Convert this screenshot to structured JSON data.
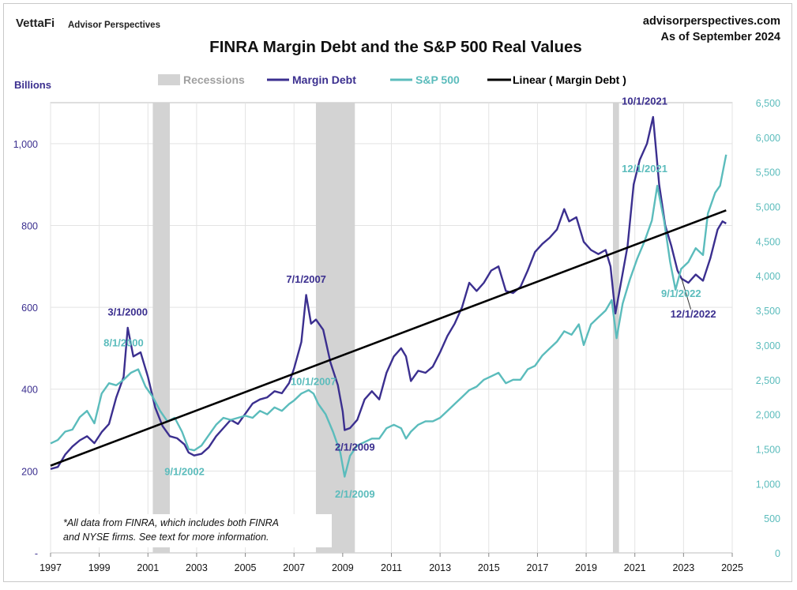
{
  "header": {
    "brand_logo": "VettaFi",
    "brand_name": "Advisor Perspectives",
    "site": "advisorperspectives.com",
    "as_of": "As of September 2024"
  },
  "footnote": {
    "line1": "*All data from FINRA, which includes both FINRA",
    "line2": "and NYSE firms. See text for more information."
  },
  "colors": {
    "margin_debt": "#3b2f8f",
    "sp500": "#5bbcbc",
    "linear": "#000000",
    "recession": "#d3d3d3",
    "grid": "#e3e3e3"
  },
  "chart_data": {
    "type": "line",
    "title": "FINRA Margin Debt and the S&P 500 Real Values",
    "ylabel": "Billions",
    "xlim": [
      1997,
      2025
    ],
    "ylim_left": [
      0,
      1100
    ],
    "ylim_right": [
      0,
      6500
    ],
    "x_ticks": [
      "1997",
      "1999",
      "2001",
      "2003",
      "2005",
      "2007",
      "2009",
      "2011",
      "2013",
      "2015",
      "2017",
      "2019",
      "2021",
      "2023",
      "2025"
    ],
    "left_ticks": [
      {
        "v": 0,
        "label": "-"
      },
      {
        "v": 200,
        "label": "200"
      },
      {
        "v": 400,
        "label": "400"
      },
      {
        "v": 600,
        "label": "600"
      },
      {
        "v": 800,
        "label": "800"
      },
      {
        "v": 1000,
        "label": "1,000"
      }
    ],
    "right_ticks": [
      {
        "v": 0,
        "label": "0"
      },
      {
        "v": 500,
        "label": "500"
      },
      {
        "v": 1000,
        "label": "1,000"
      },
      {
        "v": 1500,
        "label": "1,500"
      },
      {
        "v": 2000,
        "label": "2,000"
      },
      {
        "v": 2500,
        "label": "2,500"
      },
      {
        "v": 3000,
        "label": "3,000"
      },
      {
        "v": 3500,
        "label": "3,500"
      },
      {
        "v": 4000,
        "label": "4,000"
      },
      {
        "v": 4500,
        "label": "4,500"
      },
      {
        "v": 5000,
        "label": "5,000"
      },
      {
        "v": 5500,
        "label": "5,500"
      },
      {
        "v": 6000,
        "label": "6,000"
      },
      {
        "v": 6500,
        "label": "6,500"
      }
    ],
    "legend": {
      "position": "top",
      "items": [
        {
          "label": "Recessions",
          "kind": "rect",
          "color": "#d3d3d3",
          "text_color": "#a0a0a0"
        },
        {
          "label": "Margin Debt",
          "kind": "line",
          "color": "#3b2f8f",
          "text_color": "#3b2f8f"
        },
        {
          "label": "S&P 500",
          "kind": "line",
          "color": "#5bbcbc",
          "text_color": "#5bbcbc"
        },
        {
          "label": "Linear ( Margin Debt )",
          "kind": "line",
          "color": "#000000",
          "text_color": "#000000"
        }
      ]
    },
    "recessions": [
      [
        2001.2,
        2001.9
      ],
      [
        2007.9,
        2009.5
      ],
      [
        2020.1,
        2020.35
      ]
    ],
    "series": [
      {
        "name": "Margin Debt",
        "axis": "left",
        "points": [
          [
            1997.0,
            205
          ],
          [
            1997.3,
            210
          ],
          [
            1997.6,
            240
          ],
          [
            1997.9,
            260
          ],
          [
            1998.2,
            275
          ],
          [
            1998.5,
            285
          ],
          [
            1998.8,
            268
          ],
          [
            1999.1,
            295
          ],
          [
            1999.4,
            315
          ],
          [
            1999.7,
            380
          ],
          [
            2000.0,
            430
          ],
          [
            2000.17,
            550
          ],
          [
            2000.4,
            480
          ],
          [
            2000.7,
            490
          ],
          [
            2001.0,
            430
          ],
          [
            2001.3,
            355
          ],
          [
            2001.6,
            310
          ],
          [
            2001.9,
            285
          ],
          [
            2002.2,
            280
          ],
          [
            2002.5,
            265
          ],
          [
            2002.67,
            245
          ],
          [
            2002.9,
            238
          ],
          [
            2003.2,
            242
          ],
          [
            2003.5,
            258
          ],
          [
            2003.8,
            285
          ],
          [
            2004.1,
            305
          ],
          [
            2004.4,
            325
          ],
          [
            2004.7,
            315
          ],
          [
            2005.0,
            340
          ],
          [
            2005.3,
            365
          ],
          [
            2005.6,
            375
          ],
          [
            2005.9,
            380
          ],
          [
            2006.2,
            395
          ],
          [
            2006.5,
            390
          ],
          [
            2006.8,
            415
          ],
          [
            2007.0,
            450
          ],
          [
            2007.3,
            515
          ],
          [
            2007.5,
            630
          ],
          [
            2007.7,
            560
          ],
          [
            2007.9,
            570
          ],
          [
            2008.2,
            545
          ],
          [
            2008.5,
            465
          ],
          [
            2008.8,
            410
          ],
          [
            2009.0,
            345
          ],
          [
            2009.08,
            300
          ],
          [
            2009.3,
            305
          ],
          [
            2009.6,
            325
          ],
          [
            2009.9,
            375
          ],
          [
            2010.2,
            395
          ],
          [
            2010.5,
            375
          ],
          [
            2010.8,
            440
          ],
          [
            2011.1,
            480
          ],
          [
            2011.4,
            500
          ],
          [
            2011.6,
            480
          ],
          [
            2011.8,
            420
          ],
          [
            2012.1,
            445
          ],
          [
            2012.4,
            440
          ],
          [
            2012.7,
            455
          ],
          [
            2013.0,
            490
          ],
          [
            2013.3,
            530
          ],
          [
            2013.6,
            560
          ],
          [
            2013.9,
            600
          ],
          [
            2014.2,
            660
          ],
          [
            2014.5,
            640
          ],
          [
            2014.8,
            660
          ],
          [
            2015.1,
            690
          ],
          [
            2015.4,
            700
          ],
          [
            2015.7,
            640
          ],
          [
            2016.0,
            635
          ],
          [
            2016.3,
            650
          ],
          [
            2016.6,
            690
          ],
          [
            2016.9,
            735
          ],
          [
            2017.2,
            755
          ],
          [
            2017.5,
            770
          ],
          [
            2017.8,
            790
          ],
          [
            2018.1,
            840
          ],
          [
            2018.3,
            810
          ],
          [
            2018.6,
            820
          ],
          [
            2018.9,
            760
          ],
          [
            2019.2,
            740
          ],
          [
            2019.5,
            730
          ],
          [
            2019.8,
            740
          ],
          [
            2020.0,
            700
          ],
          [
            2020.2,
            585
          ],
          [
            2020.4,
            650
          ],
          [
            2020.7,
            750
          ],
          [
            2020.95,
            900
          ],
          [
            2021.2,
            960
          ],
          [
            2021.5,
            1000
          ],
          [
            2021.75,
            1065
          ],
          [
            2022.0,
            900
          ],
          [
            2022.25,
            800
          ],
          [
            2022.5,
            750
          ],
          [
            2022.75,
            690
          ],
          [
            2022.92,
            670
          ],
          [
            2023.2,
            660
          ],
          [
            2023.5,
            680
          ],
          [
            2023.8,
            665
          ],
          [
            2024.1,
            720
          ],
          [
            2024.4,
            790
          ],
          [
            2024.6,
            810
          ],
          [
            2024.75,
            805
          ]
        ]
      },
      {
        "name": "S&P 500",
        "axis": "right",
        "points": [
          [
            1997.0,
            1580
          ],
          [
            1997.3,
            1630
          ],
          [
            1997.6,
            1750
          ],
          [
            1997.9,
            1780
          ],
          [
            1998.2,
            1960
          ],
          [
            1998.5,
            2050
          ],
          [
            1998.8,
            1870
          ],
          [
            1999.1,
            2300
          ],
          [
            1999.4,
            2450
          ],
          [
            1999.7,
            2420
          ],
          [
            2000.0,
            2500
          ],
          [
            2000.3,
            2600
          ],
          [
            2000.6,
            2650
          ],
          [
            2000.9,
            2400
          ],
          [
            2001.2,
            2250
          ],
          [
            2001.5,
            2050
          ],
          [
            2001.8,
            1900
          ],
          [
            2002.1,
            1950
          ],
          [
            2002.4,
            1750
          ],
          [
            2002.67,
            1500
          ],
          [
            2002.9,
            1480
          ],
          [
            2003.2,
            1550
          ],
          [
            2003.5,
            1700
          ],
          [
            2003.8,
            1850
          ],
          [
            2004.1,
            1950
          ],
          [
            2004.4,
            1920
          ],
          [
            2004.7,
            1950
          ],
          [
            2005.0,
            1980
          ],
          [
            2005.3,
            1950
          ],
          [
            2005.6,
            2050
          ],
          [
            2005.9,
            2000
          ],
          [
            2006.2,
            2100
          ],
          [
            2006.5,
            2050
          ],
          [
            2006.8,
            2150
          ],
          [
            2007.0,
            2200
          ],
          [
            2007.3,
            2300
          ],
          [
            2007.6,
            2350
          ],
          [
            2007.8,
            2300
          ],
          [
            2008.0,
            2150
          ],
          [
            2008.3,
            2000
          ],
          [
            2008.6,
            1750
          ],
          [
            2008.9,
            1450
          ],
          [
            2009.08,
            1100
          ],
          [
            2009.3,
            1400
          ],
          [
            2009.6,
            1550
          ],
          [
            2009.9,
            1600
          ],
          [
            2010.2,
            1650
          ],
          [
            2010.5,
            1650
          ],
          [
            2010.8,
            1800
          ],
          [
            2011.1,
            1850
          ],
          [
            2011.4,
            1800
          ],
          [
            2011.6,
            1650
          ],
          [
            2011.8,
            1750
          ],
          [
            2012.1,
            1850
          ],
          [
            2012.4,
            1900
          ],
          [
            2012.7,
            1900
          ],
          [
            2013.0,
            1950
          ],
          [
            2013.3,
            2050
          ],
          [
            2013.6,
            2150
          ],
          [
            2013.9,
            2250
          ],
          [
            2014.2,
            2350
          ],
          [
            2014.5,
            2400
          ],
          [
            2014.8,
            2500
          ],
          [
            2015.1,
            2550
          ],
          [
            2015.4,
            2600
          ],
          [
            2015.7,
            2450
          ],
          [
            2016.0,
            2500
          ],
          [
            2016.3,
            2500
          ],
          [
            2016.6,
            2650
          ],
          [
            2016.9,
            2700
          ],
          [
            2017.2,
            2850
          ],
          [
            2017.5,
            2950
          ],
          [
            2017.8,
            3050
          ],
          [
            2018.1,
            3200
          ],
          [
            2018.4,
            3150
          ],
          [
            2018.7,
            3300
          ],
          [
            2018.9,
            3000
          ],
          [
            2019.2,
            3300
          ],
          [
            2019.5,
            3400
          ],
          [
            2019.8,
            3500
          ],
          [
            2020.05,
            3650
          ],
          [
            2020.25,
            3100
          ],
          [
            2020.5,
            3600
          ],
          [
            2020.8,
            3950
          ],
          [
            2021.1,
            4250
          ],
          [
            2021.4,
            4500
          ],
          [
            2021.7,
            4800
          ],
          [
            2021.92,
            5300
          ],
          [
            2022.2,
            4800
          ],
          [
            2022.45,
            4200
          ],
          [
            2022.67,
            3800
          ],
          [
            2022.9,
            4100
          ],
          [
            2023.2,
            4200
          ],
          [
            2023.5,
            4400
          ],
          [
            2023.8,
            4300
          ],
          [
            2024.0,
            4900
          ],
          [
            2024.3,
            5200
          ],
          [
            2024.5,
            5300
          ],
          [
            2024.75,
            5750
          ]
        ]
      },
      {
        "name": "Linear ( Margin Debt )",
        "axis": "left",
        "points": [
          [
            1997.0,
            213
          ],
          [
            2024.75,
            837
          ]
        ]
      }
    ],
    "annotations": [
      {
        "text": "3/1/2000",
        "color": "#3b2f8f",
        "x": 2000.17,
        "v": 580,
        "axis": "left"
      },
      {
        "text": "8/1/2000",
        "color": "#5bbcbc",
        "x": 2000.0,
        "v": 505,
        "axis": "left"
      },
      {
        "text": "9/1/2002",
        "color": "#5bbcbc",
        "x": 2002.5,
        "v": 190,
        "axis": "left"
      },
      {
        "text": "7/1/2007",
        "color": "#3b2f8f",
        "x": 2007.5,
        "v": 660,
        "axis": "left"
      },
      {
        "text": "10/1/2007",
        "color": "#5bbcbc",
        "x": 2007.8,
        "v": 410,
        "axis": "left"
      },
      {
        "text": "2/1/2009",
        "color": "#3b2f8f",
        "x": 2009.5,
        "v": 250,
        "axis": "left"
      },
      {
        "text": "2/1/2009",
        "color": "#5bbcbc",
        "x": 2009.5,
        "v": 135,
        "axis": "left"
      },
      {
        "text": "10/1/2021",
        "color": "#3b2f8f",
        "x": 2021.4,
        "v": 1095,
        "axis": "left"
      },
      {
        "text": "12/1/2021",
        "color": "#5bbcbc",
        "x": 2021.4,
        "v": 930,
        "axis": "left"
      },
      {
        "text": "9/1/2022",
        "color": "#5bbcbc",
        "x": 2022.9,
        "v": 625,
        "axis": "left"
      },
      {
        "text": "12/1/2022",
        "color": "#3b2f8f",
        "x": 2023.4,
        "v": 575,
        "axis": "left"
      }
    ]
  }
}
